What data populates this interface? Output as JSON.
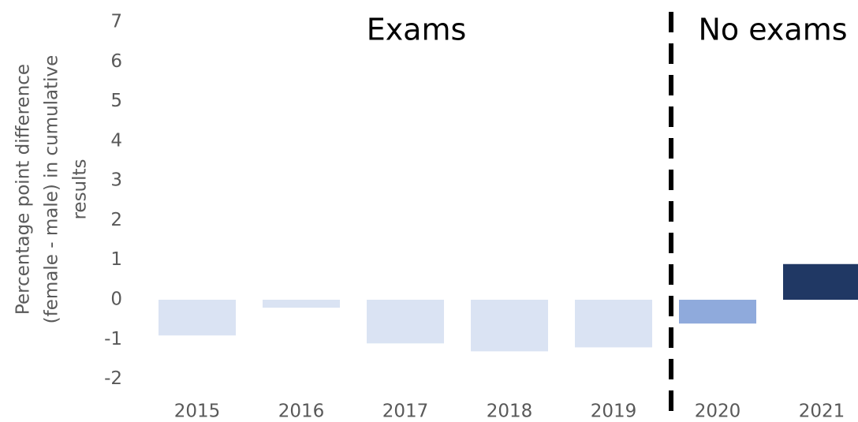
{
  "chart_data": {
    "type": "bar",
    "ylabel": [
      "Percentage point difference",
      "(female - male) in cumulative",
      "results"
    ],
    "annotations": [
      "Exams",
      "No exams"
    ],
    "categories": [
      "2015",
      "2016",
      "2017",
      "2018",
      "2019",
      "2020",
      "2021"
    ],
    "values": [
      -0.9,
      -0.2,
      -1.1,
      -1.3,
      -1.2,
      -0.6,
      0.9
    ],
    "colors": [
      "#dae3f3",
      "#dae3f3",
      "#dae3f3",
      "#dae3f3",
      "#dae3f3",
      "#8faadc",
      "#203864"
    ],
    "ylim": [
      -2,
      7
    ],
    "yticks": [
      -2,
      -1,
      0,
      1,
      2,
      3,
      4,
      5,
      6,
      7
    ],
    "grid": false
  }
}
